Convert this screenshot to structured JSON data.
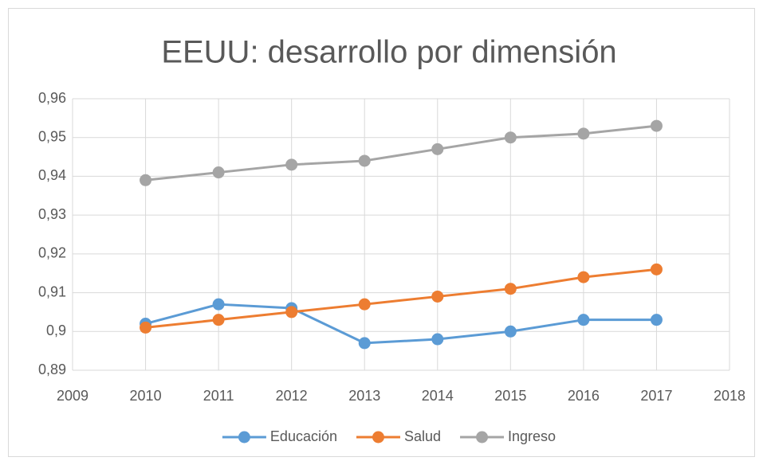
{
  "chart_data": {
    "type": "line",
    "title": "EEUU: desarrollo por dimensión",
    "x": [
      2010,
      2011,
      2012,
      2013,
      2014,
      2015,
      2016,
      2017
    ],
    "series": [
      {
        "name": "Educación",
        "color": "#5b9bd5",
        "values": [
          0.902,
          0.907,
          0.906,
          0.897,
          0.898,
          0.9,
          0.903,
          0.903
        ]
      },
      {
        "name": "Salud",
        "color": "#ed7d31",
        "values": [
          0.901,
          0.903,
          0.905,
          0.907,
          0.909,
          0.911,
          0.914,
          0.916
        ]
      },
      {
        "name": "Ingreso",
        "color": "#a5a5a5",
        "values": [
          0.939,
          0.941,
          0.943,
          0.944,
          0.947,
          0.95,
          0.951,
          0.953
        ]
      }
    ],
    "xlim": [
      2009,
      2018
    ],
    "xticks": [
      2009,
      2010,
      2011,
      2012,
      2013,
      2014,
      2015,
      2016,
      2017,
      2018
    ],
    "ylim": [
      0.89,
      0.96
    ],
    "yticks": [
      {
        "value": 0.89,
        "label": "0,89"
      },
      {
        "value": 0.9,
        "label": "0,9"
      },
      {
        "value": 0.91,
        "label": "0,91"
      },
      {
        "value": 0.92,
        "label": "0,92"
      },
      {
        "value": 0.93,
        "label": "0,93"
      },
      {
        "value": 0.94,
        "label": "0,94"
      },
      {
        "value": 0.95,
        "label": "0,95"
      },
      {
        "value": 0.96,
        "label": "0,96"
      }
    ],
    "grid": true,
    "legend": "bottom"
  }
}
